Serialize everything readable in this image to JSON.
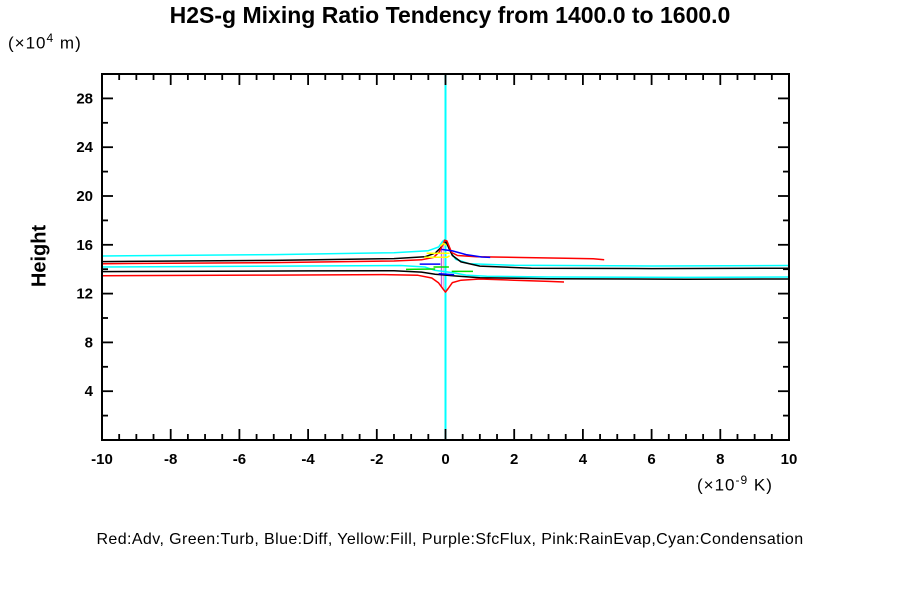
{
  "title": "H2S-g Mixing Ratio Tendency from 1400.0 to 1600.0",
  "legend": "Red:Adv, Green:Turb, Blue:Diff, Yellow:Fill, Purple:SfcFlux, Pink:RainEvap,Cyan:Condensation",
  "y_axis": {
    "label": "Height",
    "unit": {
      "prefix": "(×10",
      "exp": "4",
      "suffix": " m)"
    },
    "min": 0,
    "max": 30,
    "major_step": 4,
    "minor_step": 2,
    "major_ticks": [
      4,
      8,
      12,
      16,
      20,
      24,
      28
    ]
  },
  "x_axis": {
    "unit": {
      "prefix": "(×10",
      "exp": "-9",
      "suffix": " K)"
    },
    "min": -10,
    "max": 10,
    "major_step": 2,
    "minor_step": 0.5,
    "major_ticks": [
      -10,
      -8,
      -6,
      -4,
      -2,
      0,
      2,
      4,
      6,
      8,
      10
    ]
  },
  "colors": {
    "red": "#FF0000",
    "green": "#00DC00",
    "blue": "#0000FF",
    "yellow": "#FFFF00",
    "purple": "#B060E0",
    "pink": "#FFA8D8",
    "cyan": "#00FFFF",
    "black": "#000000",
    "frame": "#000000"
  },
  "chart_data": {
    "type": "line",
    "title": "H2S-g Mixing Ratio Tendency from 1400.0 to 1600.0",
    "xlabel": "(×10^-9 K)",
    "ylabel": "Height (×10^4 m)",
    "xlim": [
      -10,
      10
    ],
    "ylim": [
      0,
      30
    ],
    "grid": false,
    "legend_position": "bottom",
    "series": [
      {
        "name": "SfcFlux-zero-vline",
        "color": "purple",
        "width": 1.2,
        "points": [
          [
            -0.12,
            16.0
          ],
          [
            -0.12,
            12.55
          ]
        ]
      },
      {
        "name": "RainEvap-zero-vline",
        "color": "pink",
        "width": 1.5,
        "points": [
          [
            -0.06,
            16.25
          ],
          [
            -0.06,
            12.3
          ]
        ]
      },
      {
        "name": "Condensation-zero-vline",
        "color": "cyan",
        "width": 2,
        "points": [
          [
            0,
            30
          ],
          [
            0,
            0
          ]
        ]
      },
      {
        "name": "Condensation-upper",
        "color": "cyan",
        "width": 1.5,
        "points": [
          [
            -10,
            15.08
          ],
          [
            -5,
            15.2
          ],
          [
            -1.5,
            15.35
          ],
          [
            -0.5,
            15.52
          ],
          [
            -0.2,
            15.82
          ],
          [
            -0.08,
            16.3
          ],
          [
            0.0,
            16.45
          ],
          [
            0.07,
            16.1
          ],
          [
            0.15,
            15.4
          ],
          [
            0.3,
            14.8
          ],
          [
            0.7,
            14.45
          ],
          [
            2,
            14.32
          ],
          [
            6,
            14.26
          ],
          [
            10,
            14.3
          ]
        ]
      },
      {
        "name": "total-upper",
        "color": "black",
        "width": 1.5,
        "points": [
          [
            -10,
            14.62
          ],
          [
            -5,
            14.72
          ],
          [
            -1.5,
            14.87
          ],
          [
            -0.6,
            15.02
          ],
          [
            -0.3,
            15.32
          ],
          [
            -0.15,
            15.72
          ],
          [
            -0.05,
            16.12
          ],
          [
            0.02,
            16.22
          ],
          [
            0.1,
            15.72
          ],
          [
            0.2,
            15.12
          ],
          [
            0.45,
            14.6
          ],
          [
            1.0,
            14.25
          ],
          [
            2.5,
            14.08
          ],
          [
            6,
            14.05
          ],
          [
            10,
            14.08
          ]
        ]
      },
      {
        "name": "Adv-upper",
        "color": "red",
        "width": 1.5,
        "points": [
          [
            -10,
            14.45
          ],
          [
            -5,
            14.54
          ],
          [
            -1.5,
            14.67
          ],
          [
            -0.7,
            14.77
          ],
          [
            -0.35,
            14.97
          ],
          [
            -0.18,
            15.42
          ],
          [
            -0.08,
            16.02
          ],
          [
            -0.02,
            16.38
          ],
          [
            0.04,
            16.32
          ],
          [
            0.1,
            15.92
          ],
          [
            0.18,
            15.37
          ],
          [
            0.35,
            15.12
          ],
          [
            0.9,
            15.02
          ],
          [
            2.2,
            14.96
          ],
          [
            3.5,
            14.9
          ],
          [
            4.3,
            14.86
          ],
          [
            4.62,
            14.78
          ]
        ]
      },
      {
        "name": "Condensation-lower",
        "color": "cyan",
        "width": 1.5,
        "points": [
          [
            -10,
            14.18
          ],
          [
            -4,
            14.26
          ],
          [
            -1.3,
            14.3
          ],
          [
            -0.6,
            14.18
          ],
          [
            -0.3,
            13.9
          ],
          [
            0.2,
            13.72
          ],
          [
            0.6,
            13.52
          ],
          [
            1.2,
            13.42
          ],
          [
            3,
            13.36
          ],
          [
            7,
            13.33
          ],
          [
            10,
            13.36
          ]
        ]
      },
      {
        "name": "total-lower",
        "color": "black",
        "width": 1.5,
        "points": [
          [
            -10,
            13.8
          ],
          [
            -4,
            13.86
          ],
          [
            -1.5,
            13.88
          ],
          [
            -0.7,
            13.76
          ],
          [
            -0.3,
            13.58
          ],
          [
            0.3,
            13.44
          ],
          [
            1.0,
            13.3
          ],
          [
            3,
            13.22
          ],
          [
            7,
            13.18
          ],
          [
            10,
            13.2
          ]
        ]
      },
      {
        "name": "Adv-lower",
        "color": "red",
        "width": 1.5,
        "points": [
          [
            -10,
            13.47
          ],
          [
            -5,
            13.52
          ],
          [
            -1.8,
            13.56
          ],
          [
            -0.8,
            13.5
          ],
          [
            -0.4,
            13.28
          ],
          [
            -0.2,
            12.88
          ],
          [
            -0.08,
            12.4
          ],
          [
            0.0,
            12.12
          ],
          [
            0.08,
            12.42
          ],
          [
            0.2,
            12.9
          ],
          [
            0.45,
            13.1
          ],
          [
            1.0,
            13.2
          ],
          [
            2.0,
            13.1
          ],
          [
            3.0,
            13.0
          ],
          [
            3.45,
            12.95
          ]
        ]
      },
      {
        "name": "Fill-peak",
        "color": "yellow",
        "width": 1.5,
        "points": [
          [
            -0.15,
            15.9
          ],
          [
            -0.05,
            16.12
          ],
          [
            0.02,
            15.95
          ]
        ]
      },
      {
        "name": "Fill-a",
        "color": "yellow",
        "width": 1.5,
        "points": [
          [
            -0.55,
            15.3
          ],
          [
            0.12,
            15.3
          ]
        ]
      },
      {
        "name": "Fill-b",
        "color": "yellow",
        "width": 1.5,
        "points": [
          [
            -0.62,
            14.98
          ],
          [
            0.05,
            14.98
          ],
          [
            0.12,
            15.1
          ]
        ]
      },
      {
        "name": "Diff-right",
        "color": "blue",
        "width": 1.5,
        "points": [
          [
            -0.12,
            15.62
          ],
          [
            0.2,
            15.5
          ],
          [
            0.6,
            15.2
          ],
          [
            1.05,
            15.0
          ],
          [
            1.3,
            14.97
          ]
        ]
      },
      {
        "name": "Diff-left",
        "color": "blue",
        "width": 1.5,
        "points": [
          [
            -0.75,
            14.42
          ],
          [
            -0.15,
            14.42
          ]
        ]
      },
      {
        "name": "Diff-center",
        "color": "blue",
        "width": 1.5,
        "points": [
          [
            -0.2,
            13.62
          ],
          [
            0.25,
            13.55
          ]
        ]
      },
      {
        "name": "Turb-left",
        "color": "green",
        "width": 1.5,
        "points": [
          [
            -1.15,
            13.98
          ],
          [
            -0.3,
            14.02
          ]
        ]
      },
      {
        "name": "Turb-center",
        "color": "green",
        "width": 1.5,
        "points": [
          [
            -0.35,
            14.18
          ],
          [
            0.1,
            14.18
          ]
        ]
      },
      {
        "name": "Turb-right",
        "color": "green",
        "width": 1.5,
        "points": [
          [
            0.18,
            13.82
          ],
          [
            0.8,
            13.82
          ]
        ]
      }
    ]
  }
}
